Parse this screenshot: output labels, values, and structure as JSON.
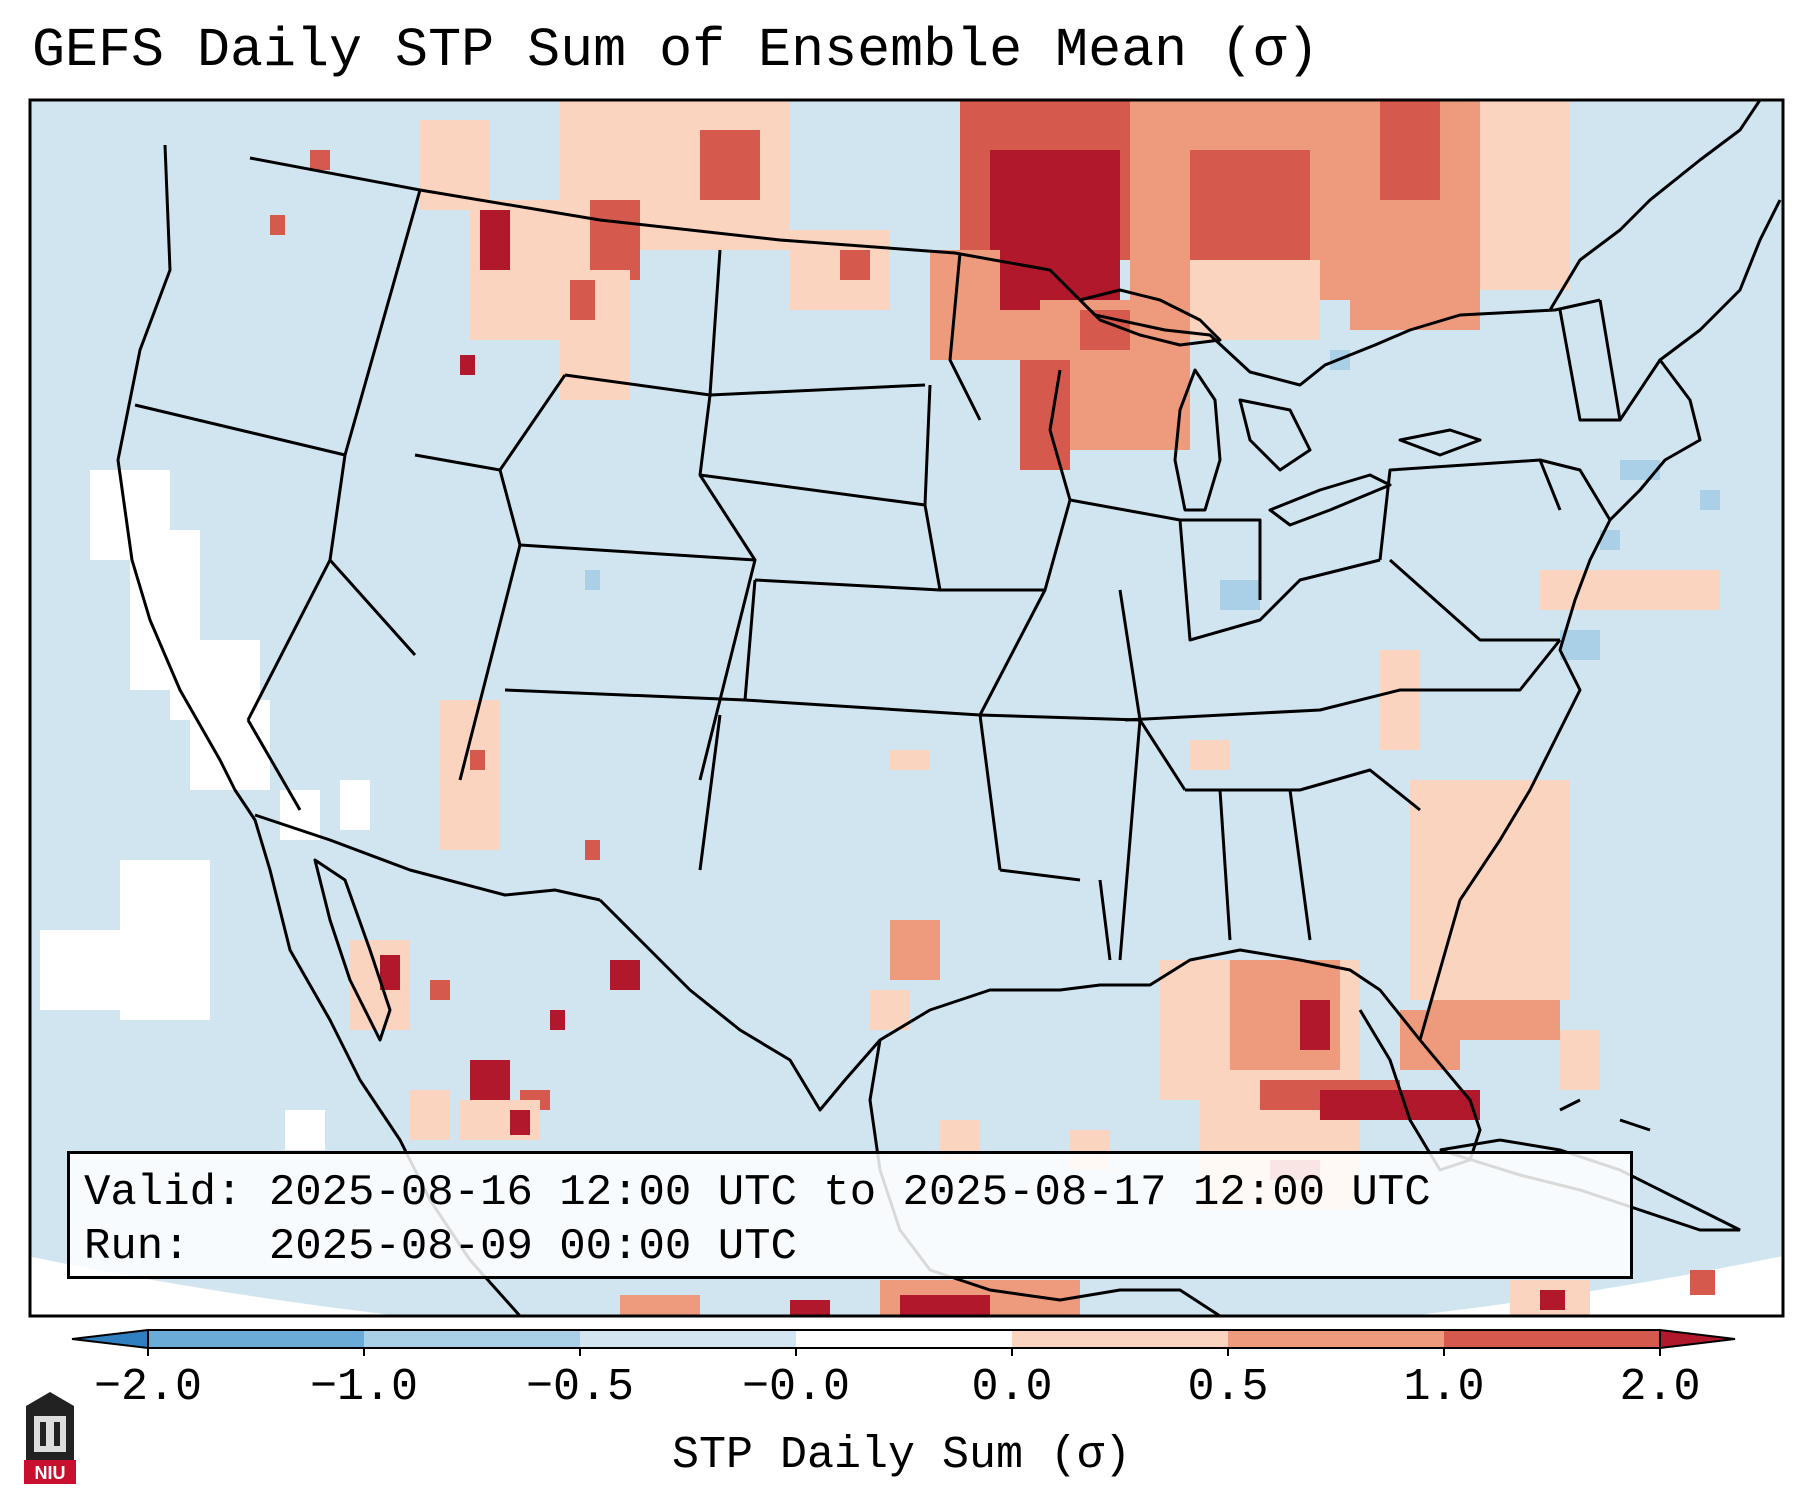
{
  "title": "GEFS Daily STP Sum of Ensemble Mean (σ)",
  "info": {
    "valid_line": "Valid: 2025-08-16 12:00 UTC to 2025-08-17 12:00 UTC",
    "run_line": "Run:   2025-08-09 00:00 UTC"
  },
  "colorbar": {
    "label": "STP Daily Sum (σ)",
    "ticks": [
      "−2.0",
      "−1.0",
      "−0.5",
      "−0.0",
      "0.0",
      "0.5",
      "1.0",
      "2.0"
    ],
    "colors": [
      "#2f7fc1",
      "#6aabd8",
      "#a9d0e6",
      "#d2e5f0",
      "#ffffff",
      "#fbd4c0",
      "#ee9a7c",
      "#d55a4d",
      "#b2182b"
    ]
  },
  "map": {
    "background_color": "#d1e5f0",
    "outside_color": "#ffffff",
    "border_color": "#000000"
  },
  "logo": {
    "text": "NIU"
  }
}
